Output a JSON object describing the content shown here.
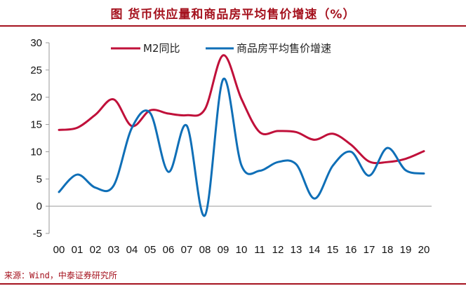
{
  "header": {
    "title": "图 货币供应量和商品房平均售价增速（%）"
  },
  "footer": {
    "source": "来源：Wind，中泰证券研究所"
  },
  "colors": {
    "accent": "#a5121e",
    "m2": "#c0103a",
    "house": "#0f6fb7"
  },
  "chart_data": {
    "type": "line",
    "title": "图 货币供应量和商品房平均售价增速（%）",
    "categories": [
      "00",
      "01",
      "02",
      "03",
      "04",
      "05",
      "06",
      "07",
      "08",
      "09",
      "10",
      "11",
      "12",
      "13",
      "14",
      "15",
      "16",
      "17",
      "18",
      "19",
      "20"
    ],
    "ylim": [
      -5,
      30
    ],
    "yticks": [
      -5,
      0,
      5,
      10,
      15,
      20,
      25,
      30
    ],
    "grid": false,
    "legend_position": "top",
    "series": [
      {
        "name": "M2同比",
        "color": "#c0103a",
        "values": [
          14.0,
          14.4,
          16.8,
          19.6,
          14.7,
          17.6,
          17.0,
          16.7,
          17.8,
          27.7,
          19.7,
          13.6,
          13.8,
          13.6,
          12.2,
          13.3,
          11.3,
          8.2,
          8.1,
          8.7,
          10.1
        ]
      },
      {
        "name": "商品房平均售价增速",
        "color": "#0f6fb7",
        "values": [
          2.6,
          5.8,
          3.4,
          3.8,
          14.4,
          17.1,
          6.3,
          14.8,
          -1.7,
          23.3,
          7.5,
          6.5,
          8.1,
          7.7,
          1.4,
          7.4,
          10.0,
          5.6,
          10.7,
          6.6,
          6.0
        ]
      }
    ]
  }
}
